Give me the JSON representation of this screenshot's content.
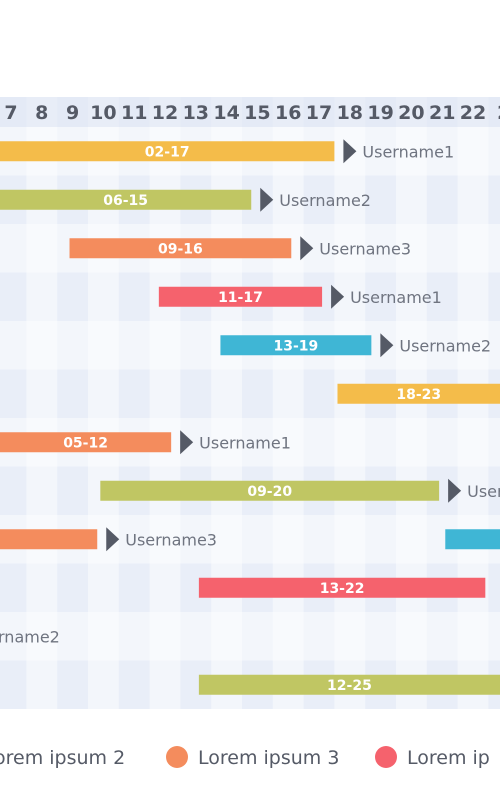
{
  "colors": {
    "yellow": "#F4BC4A",
    "olive": "#C0C663",
    "orange": "#F48C5D",
    "red": "#F5626D",
    "blue": "#3FB6D5",
    "arrow": "#555a66"
  },
  "chart_data": {
    "type": "gantt",
    "x_ticks": [
      "7",
      "8",
      "9",
      "10",
      "11",
      "12",
      "13",
      "14",
      "15",
      "16",
      "17",
      "18",
      "19",
      "20",
      "21",
      "22",
      "2"
    ],
    "xlim": [
      6.35,
      23.0
    ],
    "rows": [
      {
        "bars": [
          {
            "label": "02-17",
            "start": 2,
            "end": 17.5,
            "color": "yellow",
            "user": "Username1"
          }
        ]
      },
      {
        "bars": [
          {
            "label": "06-15",
            "start": 6,
            "end": 14.8,
            "color": "olive",
            "user": "Username2"
          }
        ]
      },
      {
        "bars": [
          {
            "label": "09-16",
            "start": 8.9,
            "end": 16.1,
            "color": "orange",
            "user": "Username3"
          }
        ]
      },
      {
        "bars": [
          {
            "label": "11-17",
            "start": 11.8,
            "end": 17.1,
            "color": "red",
            "user": "Username1"
          }
        ]
      },
      {
        "bars": [
          {
            "label": "13-19",
            "start": 13.8,
            "end": 18.7,
            "color": "blue",
            "user": "Username2"
          }
        ]
      },
      {
        "bars": [
          {
            "label": "18-23",
            "start": 17.6,
            "end": 23.5,
            "color": "yellow",
            "user": ""
          }
        ]
      },
      {
        "bars": [
          {
            "label": "05-12",
            "start": 5,
            "end": 12.2,
            "color": "orange",
            "user": "Username1"
          }
        ]
      },
      {
        "bars": [
          {
            "label": "09-20",
            "start": 9.9,
            "end": 20.9,
            "color": "olive",
            "user": "Usern"
          }
        ]
      },
      {
        "bars": [
          {
            "label": "",
            "start": 4,
            "end": 9.8,
            "color": "orange",
            "user": "Username3"
          },
          {
            "label": "",
            "start": 21.1,
            "end": 23.5,
            "color": "blue",
            "user": ""
          }
        ]
      },
      {
        "bars": [
          {
            "label": "13-22",
            "start": 13.1,
            "end": 22.4,
            "color": "red",
            "user": ""
          }
        ]
      },
      {
        "bars": [],
        "text": "rname2"
      },
      {
        "bars": [
          {
            "label": "12-25",
            "start": 13.1,
            "end": 23.5,
            "color": "olive",
            "user": ""
          }
        ]
      }
    ],
    "legend": [
      {
        "label": "orem ipsum 2",
        "color": "olive"
      },
      {
        "label": "Lorem ipsum 3",
        "color": "orange"
      },
      {
        "label": "Lorem ip",
        "color": "red"
      }
    ]
  }
}
